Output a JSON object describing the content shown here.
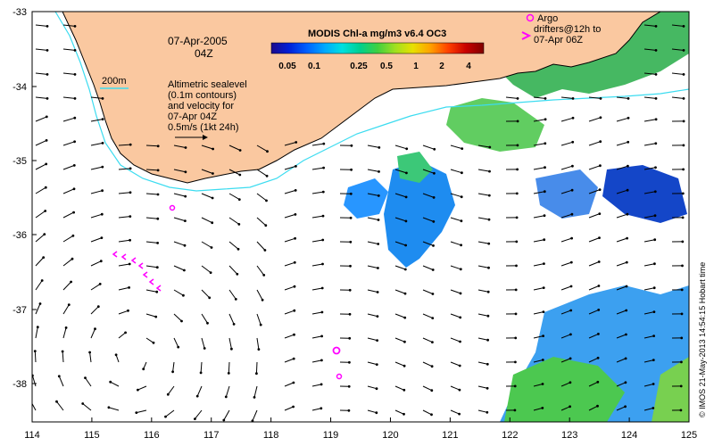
{
  "map": {
    "date_line1": "07-Apr-2005",
    "date_line2": "04Z",
    "isobath_label": "200m",
    "legend_lines": [
      "Altimetric sealevel",
      "(0.1m contours)",
      "and velocity for",
      "07-Apr 04Z",
      "0.5m/s (1kt 24h)"
    ],
    "argo_lines": [
      "Argo",
      "drifters@12h to",
      "07-Apr 06Z"
    ],
    "colorbar": {
      "title": "MODIS Chl-a mg/m3 v6.4 OC3",
      "tick_labels": [
        "0.05",
        "0.1",
        "0.25",
        "0.5",
        "1",
        "2",
        "4"
      ],
      "colors": [
        "#1c0a8c",
        "#0020d8",
        "#0060ff",
        "#00a8ff",
        "#00e0e0",
        "#00d090",
        "#40d040",
        "#a0e020",
        "#e8e000",
        "#ffa000",
        "#ff4000",
        "#c80000",
        "#800000"
      ]
    },
    "credit": "© IMOS 21-May-2013 14:54:15 Hobart time",
    "x_ticks": [
      "114",
      "115",
      "116",
      "117",
      "118",
      "119",
      "120",
      "121",
      "122",
      "123",
      "124",
      "125"
    ],
    "y_ticks": [
      "-33",
      "-34",
      "-35",
      "-36",
      "-37",
      "-38"
    ],
    "colors": {
      "land": "#fac8a0",
      "coast": "#000000",
      "isobath": "#3cdcf0",
      "argo": "#ff00ff",
      "vector": "#000000"
    }
  }
}
